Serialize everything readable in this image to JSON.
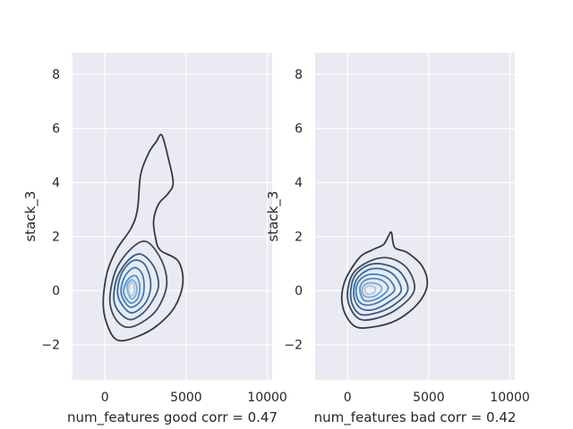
{
  "chart_data": [
    {
      "type": "contour",
      "title": "",
      "xlabel": "num_features good corr = 0.47",
      "ylabel": "stack_3",
      "xlim": [
        -2000,
        10300
      ],
      "ylim": [
        -3.3,
        8.8
      ],
      "xticks": [
        0,
        5000,
        10000
      ],
      "yticks": [
        -2,
        0,
        2,
        4,
        6,
        8
      ],
      "grid": true,
      "background": "#eaeaf2",
      "contour_levels": [
        {
          "level": 1,
          "color": "#343a40",
          "points": [
            [
              900,
              -1.85
            ],
            [
              2000,
              -1.7
            ],
            [
              3200,
              -1.3
            ],
            [
              4300,
              -0.6
            ],
            [
              4800,
              0.3
            ],
            [
              4500,
              1.1
            ],
            [
              3400,
              1.5
            ],
            [
              3100,
              2.0
            ],
            [
              3000,
              2.6
            ],
            [
              3300,
              3.2
            ],
            [
              3900,
              3.6
            ],
            [
              4200,
              4.0
            ],
            [
              3900,
              4.9
            ],
            [
              3500,
              5.75
            ],
            [
              3150,
              5.5
            ],
            [
              2700,
              5.1
            ],
            [
              2200,
              4.3
            ],
            [
              2000,
              3.0
            ],
            [
              1600,
              2.3
            ],
            [
              700,
              1.5
            ],
            [
              100,
              0.6
            ],
            [
              -100,
              -0.6
            ],
            [
              300,
              -1.5
            ]
          ]
        },
        {
          "level": 2,
          "color": "#3b4a5e",
          "points": [
            [
              1300,
              -1.35
            ],
            [
              2200,
              -1.2
            ],
            [
              3200,
              -0.7
            ],
            [
              3800,
              0.2
            ],
            [
              3500,
              1.1
            ],
            [
              2600,
              1.8
            ],
            [
              1700,
              1.6
            ],
            [
              700,
              0.8
            ],
            [
              300,
              -0.3
            ],
            [
              600,
              -1.0
            ]
          ]
        },
        {
          "level": 3,
          "color": "#365b80",
          "points": [
            [
              1400,
              -1.05
            ],
            [
              2200,
              -0.9
            ],
            [
              2900,
              -0.4
            ],
            [
              3300,
              0.2
            ],
            [
              3000,
              0.9
            ],
            [
              2200,
              1.35
            ],
            [
              1400,
              1.1
            ],
            [
              700,
              0.4
            ],
            [
              600,
              -0.5
            ]
          ]
        },
        {
          "level": 4,
          "color": "#356b9f",
          "points": [
            [
              1500,
              -0.8
            ],
            [
              2200,
              -0.65
            ],
            [
              2700,
              -0.2
            ],
            [
              2800,
              0.4
            ],
            [
              2400,
              1.0
            ],
            [
              1700,
              1.1
            ],
            [
              1000,
              0.6
            ],
            [
              800,
              -0.2
            ]
          ]
        },
        {
          "level": 5,
          "color": "#3a7cba",
          "points": [
            [
              1500,
              -0.6
            ],
            [
              2100,
              -0.45
            ],
            [
              2400,
              0.0
            ],
            [
              2300,
              0.6
            ],
            [
              1800,
              0.85
            ],
            [
              1200,
              0.5
            ],
            [
              1000,
              -0.1
            ]
          ]
        },
        {
          "level": 6,
          "color": "#4f91c9",
          "points": [
            [
              1550,
              -0.45
            ],
            [
              2000,
              -0.3
            ],
            [
              2150,
              0.15
            ],
            [
              1900,
              0.55
            ],
            [
              1400,
              0.4
            ],
            [
              1150,
              -0.05
            ]
          ]
        },
        {
          "level": 7,
          "color": "#79aad6",
          "points": [
            [
              1600,
              -0.3
            ],
            [
              1900,
              -0.15
            ],
            [
              1950,
              0.2
            ],
            [
              1650,
              0.4
            ],
            [
              1350,
              0.15
            ]
          ]
        },
        {
          "level": 8,
          "color": "#a8c6e2",
          "points": [
            [
              1600,
              -0.2
            ],
            [
              1800,
              -0.05
            ],
            [
              1800,
              0.2
            ],
            [
              1600,
              0.3
            ],
            [
              1450,
              0.05
            ]
          ]
        }
      ]
    },
    {
      "type": "contour",
      "title": "",
      "xlabel": "num_features bad corr = 0.42",
      "ylabel": "stack_3",
      "xlim": [
        -2000,
        10300
      ],
      "ylim": [
        -3.3,
        8.8
      ],
      "xticks": [
        0,
        5000,
        10000
      ],
      "yticks": [
        -2,
        0,
        2,
        4,
        6,
        8
      ],
      "grid": true,
      "background": "#eaeaf2",
      "contour_levels": [
        {
          "level": 1,
          "color": "#343a40",
          "points": [
            [
              400,
              -1.3
            ],
            [
              1500,
              -1.35
            ],
            [
              3000,
              -1.1
            ],
            [
              4300,
              -0.5
            ],
            [
              4900,
              0.2
            ],
            [
              4600,
              0.9
            ],
            [
              3700,
              1.4
            ],
            [
              2900,
              1.6
            ],
            [
              2700,
              2.15
            ],
            [
              2500,
              2.0
            ],
            [
              2200,
              1.7
            ],
            [
              1500,
              1.5
            ],
            [
              700,
              1.2
            ],
            [
              -200,
              0.3
            ],
            [
              -300,
              -0.6
            ]
          ]
        },
        {
          "level": 2,
          "color": "#3b4a5e",
          "points": [
            [
              600,
              -1.0
            ],
            [
              1600,
              -1.05
            ],
            [
              3000,
              -0.7
            ],
            [
              4100,
              0.0
            ],
            [
              3700,
              0.8
            ],
            [
              2600,
              1.2
            ],
            [
              1400,
              1.1
            ],
            [
              300,
              0.6
            ],
            [
              0,
              -0.3
            ]
          ]
        },
        {
          "level": 3,
          "color": "#365b80",
          "points": [
            [
              700,
              -0.85
            ],
            [
              1600,
              -0.85
            ],
            [
              2800,
              -0.55
            ],
            [
              3700,
              0.0
            ],
            [
              3300,
              0.65
            ],
            [
              2400,
              0.95
            ],
            [
              1300,
              0.95
            ],
            [
              400,
              0.5
            ],
            [
              200,
              -0.3
            ]
          ]
        },
        {
          "level": 4,
          "color": "#356b9f",
          "points": [
            [
              800,
              -0.65
            ],
            [
              1600,
              -0.7
            ],
            [
              2600,
              -0.4
            ],
            [
              3300,
              0.0
            ],
            [
              2900,
              0.55
            ],
            [
              2100,
              0.8
            ],
            [
              1200,
              0.75
            ],
            [
              500,
              0.35
            ],
            [
              400,
              -0.25
            ]
          ]
        },
        {
          "level": 5,
          "color": "#3a7cba",
          "points": [
            [
              900,
              -0.5
            ],
            [
              1600,
              -0.5
            ],
            [
              2400,
              -0.25
            ],
            [
              2900,
              0.05
            ],
            [
              2500,
              0.45
            ],
            [
              1800,
              0.6
            ],
            [
              1100,
              0.55
            ],
            [
              600,
              0.25
            ],
            [
              550,
              -0.2
            ]
          ]
        },
        {
          "level": 6,
          "color": "#4f91c9",
          "points": [
            [
              1000,
              -0.35
            ],
            [
              1600,
              -0.35
            ],
            [
              2200,
              -0.15
            ],
            [
              2500,
              0.1
            ],
            [
              2200,
              0.35
            ],
            [
              1600,
              0.45
            ],
            [
              1000,
              0.35
            ],
            [
              750,
              0.05
            ]
          ]
        },
        {
          "level": 7,
          "color": "#79aad6",
          "points": [
            [
              1100,
              -0.22
            ],
            [
              1600,
              -0.22
            ],
            [
              2000,
              -0.05
            ],
            [
              2100,
              0.12
            ],
            [
              1800,
              0.25
            ],
            [
              1300,
              0.28
            ],
            [
              950,
              0.15
            ],
            [
              900,
              -0.05
            ]
          ]
        },
        {
          "level": 8,
          "color": "#a8c6e2",
          "points": [
            [
              1200,
              -0.12
            ],
            [
              1500,
              -0.12
            ],
            [
              1700,
              0.0
            ],
            [
              1700,
              0.1
            ],
            [
              1450,
              0.18
            ],
            [
              1200,
              0.15
            ],
            [
              1050,
              0.05
            ]
          ]
        }
      ]
    }
  ]
}
